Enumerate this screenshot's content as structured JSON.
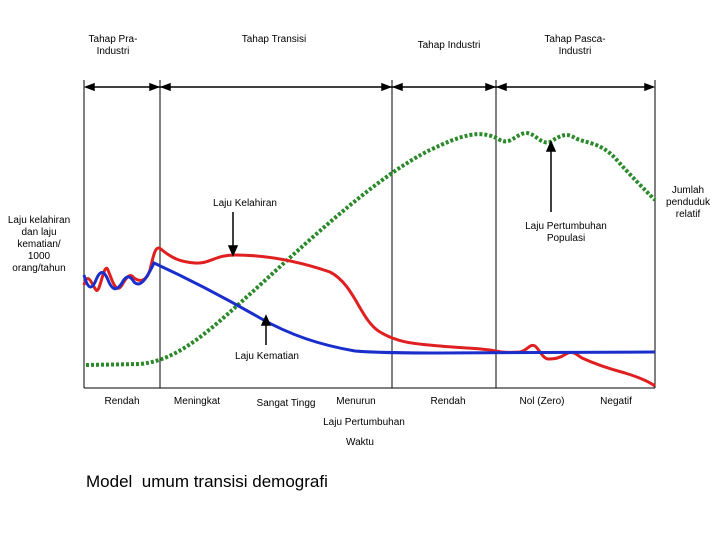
{
  "stages": [
    {
      "line1": "Tahap Pra-",
      "line2": "Industri"
    },
    {
      "line1": "Tahap Transisi",
      "line2": ""
    },
    {
      "line1": "Tahap Industri",
      "line2": ""
    },
    {
      "line1": "Tahap Pasca-",
      "line2": "Industri"
    }
  ],
  "left_axis_label": [
    "Laju kelahiran",
    "dan laju",
    "kematian/",
    "1000",
    "orang/tahun"
  ],
  "right_axis_label": [
    "Jumlah",
    "penduduk",
    "relatif"
  ],
  "annotations": {
    "birth_rate": "Laju Kelahiran",
    "death_rate": "Laju Kematian",
    "population_growth": [
      "Laju Pertumbuhan",
      "Populasi"
    ]
  },
  "growth_levels": [
    "Rendah",
    "Meningkat",
    "Sangat Tingg",
    "Menurun",
    "Rendah",
    "Nol (Zero)",
    "Negatif"
  ],
  "growth_axis_label": "Laju Pertumbuhan",
  "x_axis_label": "Waktu",
  "title": "Model  umum transisi demografi",
  "colors": {
    "birth_rate": "#e02020",
    "death_rate": "#1a2ecc",
    "population": "#2a8a2a",
    "axis": "#000000"
  }
}
